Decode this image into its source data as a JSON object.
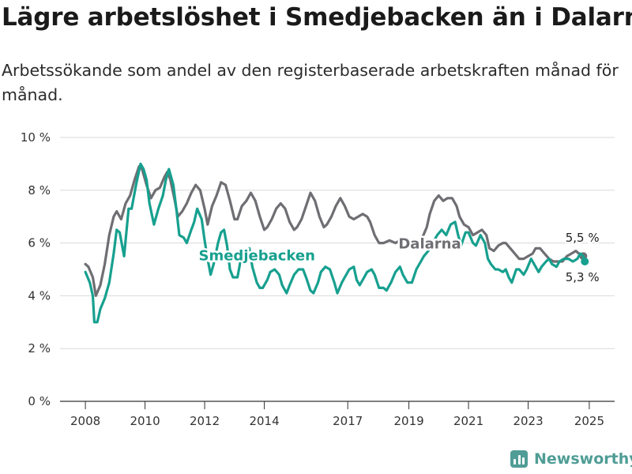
{
  "title": "Lägre arbetslöshet i Smedjebacken än i Dalarna",
  "subtitle": "Arbetssökande som andel av den registerbaserade arbetskraften månad för månad.",
  "brand": {
    "name": "Newsworthy",
    "icon": "bar-chart-logo-icon",
    "color": "#4f9d96"
  },
  "chart_data": {
    "type": "line",
    "grid": true,
    "x_ticks": [
      "2008",
      "2010",
      "2012",
      "2014",
      "2017",
      "2019",
      "2021",
      "2023",
      "2025"
    ],
    "x_tick_values": [
      2008,
      2010,
      2012,
      2014,
      2016.8,
      2018.85,
      2020.85,
      2022.85,
      2024.9
    ],
    "xlim": [
      2007.15,
      2025.75
    ],
    "y_ticks": [
      "0 %",
      "2 %",
      "4 %",
      "6 %",
      "8 %",
      "10 %"
    ],
    "y_tick_values": [
      0,
      2,
      4,
      6,
      8,
      10
    ],
    "ylim": [
      0,
      10
    ],
    "series": [
      {
        "name": "Dalarna",
        "color": "#6e6e73",
        "end_label": "5,5 %",
        "points": [
          [
            2008.0,
            5.2
          ],
          [
            2008.1,
            5.1
          ],
          [
            2008.25,
            4.7
          ],
          [
            2008.35,
            4.0
          ],
          [
            2008.5,
            4.4
          ],
          [
            2008.65,
            5.2
          ],
          [
            2008.8,
            6.3
          ],
          [
            2008.95,
            7.0
          ],
          [
            2009.05,
            7.2
          ],
          [
            2009.2,
            6.9
          ],
          [
            2009.35,
            7.5
          ],
          [
            2009.5,
            7.8
          ],
          [
            2009.65,
            8.4
          ],
          [
            2009.8,
            8.9
          ],
          [
            2009.9,
            8.8
          ],
          [
            2010.05,
            8.2
          ],
          [
            2010.2,
            7.7
          ],
          [
            2010.35,
            8.0
          ],
          [
            2010.5,
            8.1
          ],
          [
            2010.65,
            8.5
          ],
          [
            2010.75,
            8.7
          ],
          [
            2010.85,
            8.4
          ],
          [
            2011.0,
            7.6
          ],
          [
            2011.1,
            7.0
          ],
          [
            2011.25,
            7.2
          ],
          [
            2011.4,
            7.5
          ],
          [
            2011.55,
            7.9
          ],
          [
            2011.7,
            8.2
          ],
          [
            2011.85,
            8.0
          ],
          [
            2012.0,
            7.3
          ],
          [
            2012.1,
            6.7
          ],
          [
            2012.25,
            7.4
          ],
          [
            2012.4,
            7.8
          ],
          [
            2012.55,
            8.3
          ],
          [
            2012.7,
            8.2
          ],
          [
            2012.85,
            7.6
          ],
          [
            2013.0,
            6.9
          ],
          [
            2013.1,
            6.9
          ],
          [
            2013.25,
            7.4
          ],
          [
            2013.4,
            7.6
          ],
          [
            2013.55,
            7.9
          ],
          [
            2013.7,
            7.6
          ],
          [
            2013.85,
            7.0
          ],
          [
            2014.0,
            6.5
          ],
          [
            2014.1,
            6.6
          ],
          [
            2014.25,
            6.9
          ],
          [
            2014.4,
            7.3
          ],
          [
            2014.55,
            7.5
          ],
          [
            2014.7,
            7.3
          ],
          [
            2014.85,
            6.8
          ],
          [
            2015.0,
            6.5
          ],
          [
            2015.1,
            6.6
          ],
          [
            2015.25,
            6.9
          ],
          [
            2015.4,
            7.4
          ],
          [
            2015.55,
            7.9
          ],
          [
            2015.7,
            7.6
          ],
          [
            2015.85,
            7.0
          ],
          [
            2016.0,
            6.6
          ],
          [
            2016.1,
            6.7
          ],
          [
            2016.25,
            7.0
          ],
          [
            2016.4,
            7.4
          ],
          [
            2016.55,
            7.7
          ],
          [
            2016.7,
            7.4
          ],
          [
            2016.85,
            7.0
          ],
          [
            2017.0,
            6.9
          ],
          [
            2017.15,
            7.0
          ],
          [
            2017.3,
            7.1
          ],
          [
            2017.45,
            7.0
          ],
          [
            2017.55,
            6.8
          ],
          [
            2017.7,
            6.3
          ],
          [
            2017.85,
            6.0
          ],
          [
            2018.0,
            6.0
          ],
          [
            2018.2,
            6.1
          ],
          [
            2018.4,
            6.0
          ],
          [
            2018.55,
            6.1
          ],
          [
            2018.7,
            6.2
          ],
          [
            2018.85,
            6.0
          ],
          [
            2019.0,
            5.9
          ],
          [
            2019.15,
            5.9
          ],
          [
            2019.3,
            6.2
          ],
          [
            2019.45,
            6.6
          ],
          [
            2019.55,
            7.1
          ],
          [
            2019.7,
            7.6
          ],
          [
            2019.85,
            7.8
          ],
          [
            2020.0,
            7.6
          ],
          [
            2020.15,
            7.7
          ],
          [
            2020.3,
            7.7
          ],
          [
            2020.45,
            7.4
          ],
          [
            2020.55,
            7.0
          ],
          [
            2020.7,
            6.7
          ],
          [
            2020.85,
            6.6
          ],
          [
            2021.0,
            6.3
          ],
          [
            2021.15,
            6.4
          ],
          [
            2021.3,
            6.5
          ],
          [
            2021.45,
            6.3
          ],
          [
            2021.55,
            5.8
          ],
          [
            2021.7,
            5.7
          ],
          [
            2021.85,
            5.9
          ],
          [
            2022.0,
            6.0
          ],
          [
            2022.1,
            6.0
          ],
          [
            2022.25,
            5.8
          ],
          [
            2022.4,
            5.6
          ],
          [
            2022.55,
            5.4
          ],
          [
            2022.7,
            5.4
          ],
          [
            2022.85,
            5.5
          ],
          [
            2023.0,
            5.6
          ],
          [
            2023.1,
            5.8
          ],
          [
            2023.25,
            5.8
          ],
          [
            2023.4,
            5.6
          ],
          [
            2023.55,
            5.4
          ],
          [
            2023.7,
            5.3
          ],
          [
            2023.85,
            5.3
          ],
          [
            2024.0,
            5.3
          ],
          [
            2024.15,
            5.5
          ],
          [
            2024.3,
            5.6
          ],
          [
            2024.45,
            5.7
          ],
          [
            2024.55,
            5.6
          ],
          [
            2024.7,
            5.5
          ]
        ]
      },
      {
        "name": "Smedjebacken",
        "color": "#17a08f",
        "end_label": "5,3 %",
        "points": [
          [
            2008.0,
            4.9
          ],
          [
            2008.15,
            4.5
          ],
          [
            2008.25,
            4.0
          ],
          [
            2008.3,
            3.0
          ],
          [
            2008.4,
            3.0
          ],
          [
            2008.5,
            3.5
          ],
          [
            2008.65,
            3.9
          ],
          [
            2008.8,
            4.5
          ],
          [
            2008.95,
            5.6
          ],
          [
            2009.05,
            6.5
          ],
          [
            2009.15,
            6.4
          ],
          [
            2009.3,
            5.5
          ],
          [
            2009.45,
            7.3
          ],
          [
            2009.55,
            7.3
          ],
          [
            2009.7,
            8.2
          ],
          [
            2009.85,
            9.0
          ],
          [
            2009.95,
            8.8
          ],
          [
            2010.05,
            8.4
          ],
          [
            2010.15,
            7.5
          ],
          [
            2010.3,
            6.7
          ],
          [
            2010.45,
            7.3
          ],
          [
            2010.6,
            7.8
          ],
          [
            2010.7,
            8.4
          ],
          [
            2010.8,
            8.8
          ],
          [
            2010.95,
            8.2
          ],
          [
            2011.05,
            7.3
          ],
          [
            2011.15,
            6.3
          ],
          [
            2011.3,
            6.2
          ],
          [
            2011.4,
            6.0
          ],
          [
            2011.55,
            6.5
          ],
          [
            2011.65,
            6.8
          ],
          [
            2011.75,
            7.3
          ],
          [
            2011.9,
            6.9
          ],
          [
            2012.0,
            6.1
          ],
          [
            2012.1,
            5.4
          ],
          [
            2012.2,
            4.8
          ],
          [
            2012.3,
            5.2
          ],
          [
            2012.45,
            6.0
          ],
          [
            2012.55,
            6.4
          ],
          [
            2012.65,
            6.5
          ],
          [
            2012.75,
            5.9
          ],
          [
            2012.85,
            5.0
          ],
          [
            2012.95,
            4.7
          ],
          [
            2013.1,
            4.7
          ],
          [
            2013.2,
            5.3
          ],
          [
            2013.35,
            5.7
          ],
          [
            2013.5,
            5.8
          ],
          [
            2013.6,
            5.1
          ],
          [
            2013.75,
            4.5
          ],
          [
            2013.85,
            4.3
          ],
          [
            2013.95,
            4.3
          ],
          [
            2014.1,
            4.6
          ],
          [
            2014.2,
            4.9
          ],
          [
            2014.35,
            5.0
          ],
          [
            2014.5,
            4.8
          ],
          [
            2014.6,
            4.4
          ],
          [
            2014.75,
            4.1
          ],
          [
            2014.85,
            4.4
          ],
          [
            2015.0,
            4.8
          ],
          [
            2015.15,
            5.0
          ],
          [
            2015.3,
            5.0
          ],
          [
            2015.4,
            4.7
          ],
          [
            2015.55,
            4.2
          ],
          [
            2015.65,
            4.1
          ],
          [
            2015.8,
            4.5
          ],
          [
            2015.9,
            4.9
          ],
          [
            2016.05,
            5.1
          ],
          [
            2016.2,
            5.0
          ],
          [
            2016.35,
            4.5
          ],
          [
            2016.45,
            4.1
          ],
          [
            2016.6,
            4.5
          ],
          [
            2016.7,
            4.7
          ],
          [
            2016.85,
            5.0
          ],
          [
            2017.0,
            5.1
          ],
          [
            2017.1,
            4.6
          ],
          [
            2017.2,
            4.4
          ],
          [
            2017.35,
            4.7
          ],
          [
            2017.45,
            4.9
          ],
          [
            2017.6,
            5.0
          ],
          [
            2017.7,
            4.8
          ],
          [
            2017.85,
            4.3
          ],
          [
            2018.0,
            4.3
          ],
          [
            2018.1,
            4.2
          ],
          [
            2018.25,
            4.5
          ],
          [
            2018.4,
            4.9
          ],
          [
            2018.55,
            5.1
          ],
          [
            2018.65,
            4.8
          ],
          [
            2018.8,
            4.5
          ],
          [
            2018.95,
            4.5
          ],
          [
            2019.1,
            5.0
          ],
          [
            2019.25,
            5.3
          ],
          [
            2019.35,
            5.5
          ],
          [
            2019.5,
            5.7
          ],
          [
            2019.65,
            6.0
          ],
          [
            2019.8,
            6.3
          ],
          [
            2019.95,
            6.5
          ],
          [
            2020.1,
            6.3
          ],
          [
            2020.25,
            6.7
          ],
          [
            2020.4,
            6.8
          ],
          [
            2020.5,
            6.3
          ],
          [
            2020.6,
            5.9
          ],
          [
            2020.75,
            6.4
          ],
          [
            2020.85,
            6.4
          ],
          [
            2021.0,
            6.0
          ],
          [
            2021.1,
            5.9
          ],
          [
            2021.25,
            6.3
          ],
          [
            2021.4,
            6.0
          ],
          [
            2021.5,
            5.4
          ],
          [
            2021.6,
            5.2
          ],
          [
            2021.75,
            5.0
          ],
          [
            2021.85,
            5.0
          ],
          [
            2022.0,
            4.9
          ],
          [
            2022.1,
            5.0
          ],
          [
            2022.2,
            4.7
          ],
          [
            2022.3,
            4.5
          ],
          [
            2022.45,
            5.0
          ],
          [
            2022.55,
            5.0
          ],
          [
            2022.7,
            4.8
          ],
          [
            2022.8,
            5.0
          ],
          [
            2022.95,
            5.4
          ],
          [
            2023.1,
            5.1
          ],
          [
            2023.2,
            4.9
          ],
          [
            2023.3,
            5.1
          ],
          [
            2023.45,
            5.3
          ],
          [
            2023.55,
            5.4
          ],
          [
            2023.65,
            5.2
          ],
          [
            2023.8,
            5.1
          ],
          [
            2023.9,
            5.3
          ],
          [
            2024.05,
            5.4
          ],
          [
            2024.2,
            5.4
          ],
          [
            2024.35,
            5.3
          ],
          [
            2024.5,
            5.4
          ],
          [
            2024.6,
            5.6
          ],
          [
            2024.7,
            5.5
          ],
          [
            2024.75,
            5.3
          ]
        ]
      }
    ]
  }
}
